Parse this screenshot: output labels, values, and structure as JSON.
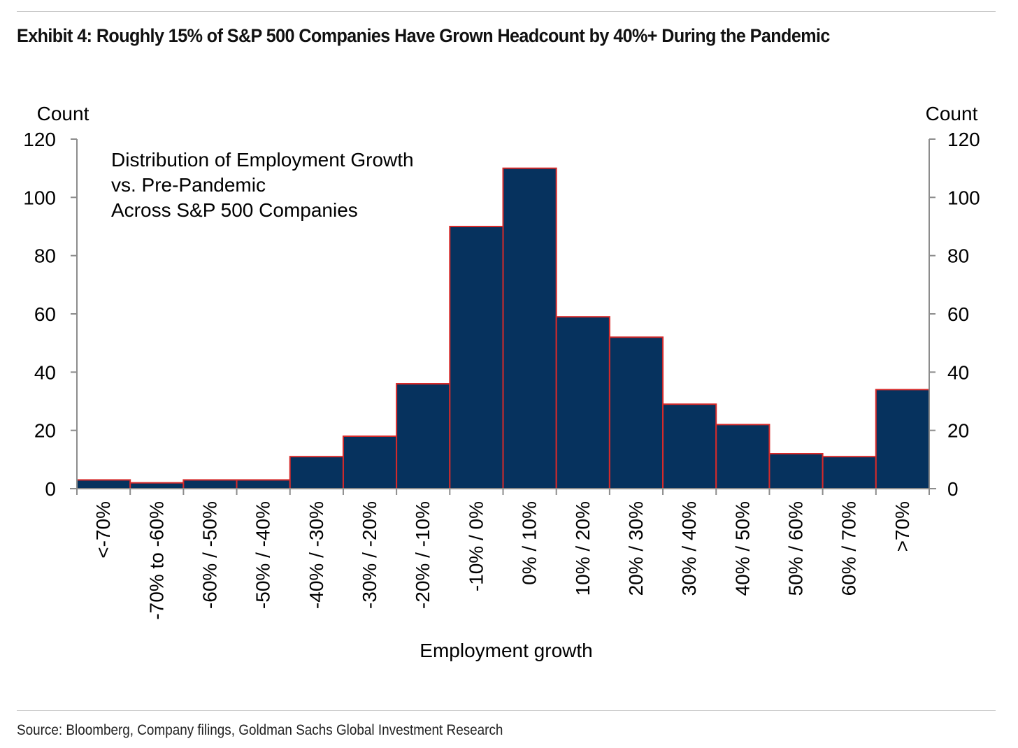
{
  "header": {
    "title": "Exhibit 4: Roughly 15% of S&P 500 Companies Have Grown Headcount by 40%+ During the Pandemic"
  },
  "footer": {
    "source": "Source: Bloomberg, Company filings, Goldman Sachs Global Investment Research"
  },
  "colors": {
    "bar_fill": "#06325e",
    "bar_stroke": "#d62a2a",
    "axis": "#8c8c8c",
    "rule": "#c8c8c8"
  },
  "chart_data": {
    "type": "bar",
    "annotation": [
      "Distribution of Employment Growth",
      "vs. Pre-Pandemic",
      "Across S&P 500 Companies"
    ],
    "xlabel": "Employment growth",
    "ylabel_left": "Count",
    "ylabel_right": "Count",
    "ylim": [
      0,
      120
    ],
    "yticks": [
      0,
      20,
      40,
      60,
      80,
      100,
      120
    ],
    "grid": false,
    "categories": [
      "<-70%",
      "-70% to -60%",
      "-60% / -50%",
      "-50% / -40%",
      "-40% / -30%",
      "-30% / -20%",
      "-20% / -10%",
      "-10% / 0%",
      "0% / 10%",
      "10% / 20%",
      "20% / 30%",
      "30% / 40%",
      "40% / 50%",
      "50% / 60%",
      "60% / 70%",
      ">70%"
    ],
    "values": [
      3,
      2,
      3,
      3,
      11,
      18,
      36,
      90,
      110,
      59,
      52,
      29,
      22,
      12,
      11,
      34
    ]
  }
}
